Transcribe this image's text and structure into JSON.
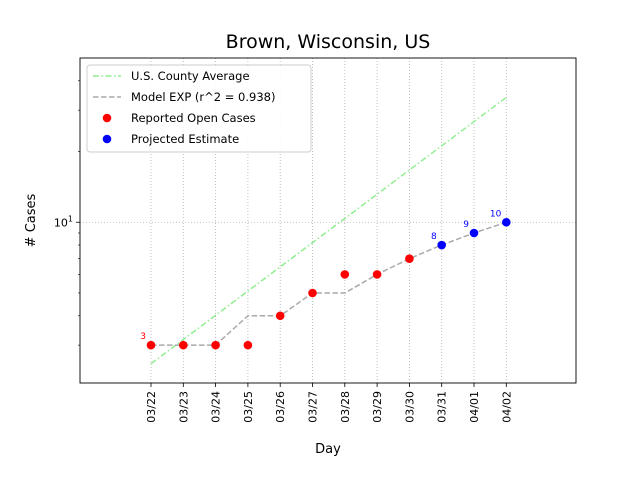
{
  "chart_data": {
    "type": "line",
    "title": "Brown, Wisconsin, US",
    "xlabel": "Day",
    "ylabel": "# Cases",
    "yscale": "log",
    "ylim": [
      2.07,
      50
    ],
    "y_tick_labels": [
      {
        "value": 10,
        "base": "10",
        "exp": "1"
      }
    ],
    "grid": "dotted, at each x tick and at y = 10",
    "legend": "top-left",
    "categories": [
      "03/22",
      "03/23",
      "03/24",
      "03/25",
      "03/26",
      "03/27",
      "03/28",
      "03/29",
      "03/30",
      "03/31",
      "04/01",
      "04/02"
    ],
    "series": [
      {
        "name": "U.S. County Average",
        "style": "dash-dot",
        "color": "#90ee90",
        "x": [
          "03/22",
          "04/02"
        ],
        "values": [
          2.5,
          34
        ]
      },
      {
        "name": "Model EXP (r^2 = 0.938)",
        "style": "dashed",
        "color": "#a9a9a9",
        "x": [
          "03/22",
          "03/23",
          "03/24",
          "03/25",
          "03/26",
          "03/27",
          "03/28",
          "03/29",
          "03/30",
          "03/31",
          "04/01",
          "04/02"
        ],
        "values": [
          3,
          3,
          3,
          4,
          4,
          5,
          5,
          6,
          7,
          8,
          9,
          10
        ]
      },
      {
        "name": "Reported Open Cases",
        "style": "marker",
        "color": "#ff0000",
        "x": [
          "03/22",
          "03/23",
          "03/24",
          "03/25",
          "03/26",
          "03/27",
          "03/28",
          "03/29",
          "03/30"
        ],
        "values": [
          3,
          3,
          3,
          3,
          4,
          5,
          6,
          6,
          7
        ]
      },
      {
        "name": "Projected Estimate",
        "style": "marker",
        "color": "#0000ff",
        "x": [
          "03/31",
          "04/01",
          "04/02"
        ],
        "values": [
          8,
          9,
          10
        ]
      }
    ],
    "annotations": [
      {
        "x": "03/22",
        "y": 3,
        "text": "3",
        "color": "#ff0000"
      },
      {
        "x": "03/31",
        "y": 8,
        "text": "8",
        "color": "#0000ff"
      },
      {
        "x": "04/01",
        "y": 9,
        "text": "9",
        "color": "#0000ff"
      },
      {
        "x": "04/02",
        "y": 10,
        "text": "10",
        "color": "#0000ff"
      }
    ]
  }
}
